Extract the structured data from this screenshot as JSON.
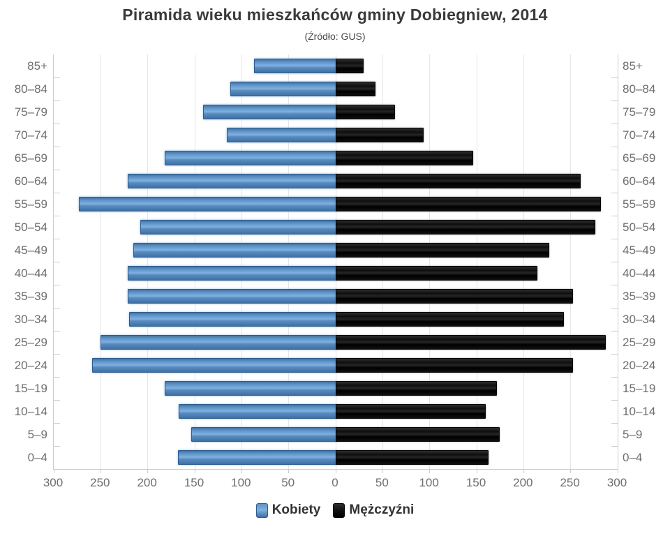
{
  "chart_data": {
    "type": "bar",
    "variant": "population-pyramid",
    "title": "Piramida wieku mieszkańców gminy Dobiegniew, 2014",
    "subtitle": "(Źródło: GUS)",
    "categories": [
      "85+",
      "80–84",
      "75–79",
      "70–74",
      "65–69",
      "60–64",
      "55–59",
      "50–54",
      "45–49",
      "40–44",
      "35–39",
      "30–34",
      "25–29",
      "20–24",
      "15–19",
      "10–14",
      "5–9",
      "0–4"
    ],
    "series": [
      {
        "name": "Kobiety",
        "side": "left",
        "color": "#5d93c8",
        "values": [
          87,
          112,
          141,
          116,
          182,
          221,
          273,
          208,
          215,
          221,
          221,
          220,
          250,
          259,
          182,
          167,
          154,
          168
        ]
      },
      {
        "name": "Mężczyźni",
        "side": "right",
        "color": "#111111",
        "values": [
          28,
          41,
          62,
          92,
          145,
          259,
          281,
          275,
          226,
          213,
          251,
          241,
          286,
          251,
          170,
          158,
          173,
          161
        ]
      }
    ],
    "axis_max": 300,
    "x_tick_interval": 50,
    "x_tick_labels": [
      "300",
      "250",
      "200",
      "150",
      "100",
      "50",
      "0",
      "50",
      "100",
      "150",
      "200",
      "250",
      "300"
    ],
    "grid": true,
    "legend_position": "bottom"
  },
  "colors": {
    "female_bar": "#5d93c8",
    "male_bar": "#111111",
    "gridline": "#e6e6e6",
    "axis_line": "#c9ccd1",
    "axis_label": "#6e6e6e",
    "title": "#3a3a3a",
    "legend_text": "#333333"
  }
}
